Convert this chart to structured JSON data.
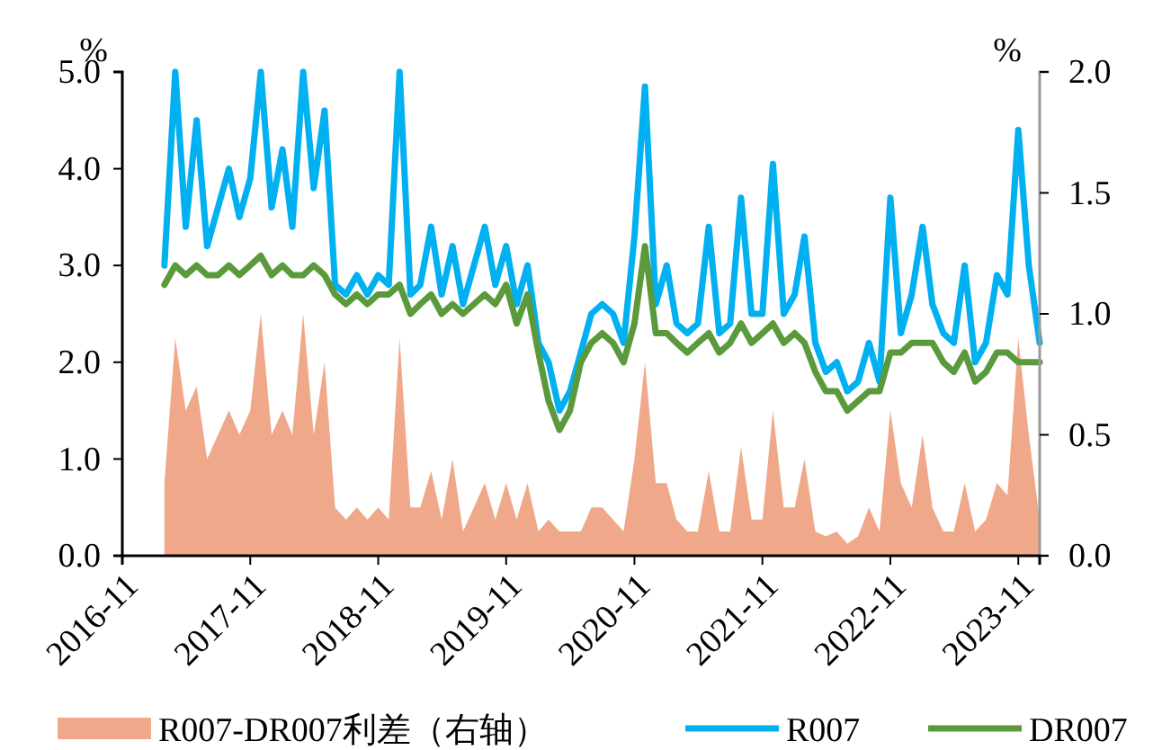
{
  "chart_data": {
    "type": "line",
    "ylabel": "%",
    "y2label": "%",
    "xlim": [
      "2016-11",
      "2024-01"
    ],
    "xticks": [
      {
        "value": "2016-11",
        "label": "2016-11"
      },
      {
        "value": "2017-11",
        "label": "2017-11"
      },
      {
        "value": "2018-11",
        "label": "2018-11"
      },
      {
        "value": "2019-11",
        "label": "2019-11"
      },
      {
        "value": "2020-11",
        "label": "2020-11"
      },
      {
        "value": "2021-11",
        "label": "2021-11"
      },
      {
        "value": "2022-11",
        "label": "2022-11"
      },
      {
        "value": "2023-11",
        "label": "2023-11"
      }
    ],
    "ylim": [
      0,
      5
    ],
    "yticks": [
      {
        "value": 0,
        "label": "0.0"
      },
      {
        "value": 1,
        "label": "1.0"
      },
      {
        "value": 2,
        "label": "2.0"
      },
      {
        "value": 3,
        "label": "3.0"
      },
      {
        "value": 4,
        "label": "4.0"
      },
      {
        "value": 5,
        "label": "5.0"
      }
    ],
    "y2lim": [
      0,
      2
    ],
    "y2ticks": [
      {
        "value": 0,
        "label": "0.0"
      },
      {
        "value": 0.5,
        "label": "0.5"
      },
      {
        "value": 1,
        "label": "1.0"
      },
      {
        "value": 1.5,
        "label": "1.5"
      },
      {
        "value": 2,
        "label": "2.0"
      }
    ],
    "x": [
      "2017-03",
      "2017-04",
      "2017-05",
      "2017-06",
      "2017-07",
      "2017-08",
      "2017-09",
      "2017-10",
      "2017-11",
      "2017-12",
      "2018-01",
      "2018-02",
      "2018-03",
      "2018-04",
      "2018-05",
      "2018-06",
      "2018-07",
      "2018-08",
      "2018-09",
      "2018-10",
      "2018-11",
      "2018-12",
      "2019-01",
      "2019-02",
      "2019-03",
      "2019-04",
      "2019-05",
      "2019-06",
      "2019-07",
      "2019-08",
      "2019-09",
      "2019-10",
      "2019-11",
      "2019-12",
      "2020-01",
      "2020-02",
      "2020-03",
      "2020-04",
      "2020-05",
      "2020-06",
      "2020-07",
      "2020-08",
      "2020-09",
      "2020-10",
      "2020-11",
      "2020-12",
      "2021-01",
      "2021-02",
      "2021-03",
      "2021-04",
      "2021-05",
      "2021-06",
      "2021-07",
      "2021-08",
      "2021-09",
      "2021-10",
      "2021-11",
      "2021-12",
      "2022-01",
      "2022-02",
      "2022-03",
      "2022-04",
      "2022-05",
      "2022-06",
      "2022-07",
      "2022-08",
      "2022-09",
      "2022-10",
      "2022-11",
      "2022-12",
      "2023-01",
      "2023-02",
      "2023-03",
      "2023-04",
      "2023-05",
      "2023-06",
      "2023-07",
      "2023-08",
      "2023-09",
      "2023-10",
      "2023-11",
      "2023-12",
      "2024-01"
    ],
    "legend": "bottom",
    "series": [
      {
        "name": "R007-DR007利差（右轴）",
        "type": "area",
        "axis": "y2",
        "color": "#f0a88a",
        "values": [
          0.3,
          0.9,
          0.6,
          0.7,
          0.4,
          0.5,
          0.6,
          0.5,
          0.6,
          1.0,
          0.5,
          0.6,
          0.5,
          1.0,
          0.5,
          0.8,
          0.2,
          0.15,
          0.2,
          0.15,
          0.2,
          0.15,
          0.9,
          0.2,
          0.2,
          0.35,
          0.15,
          0.4,
          0.1,
          0.2,
          0.3,
          0.15,
          0.3,
          0.15,
          0.3,
          0.1,
          0.15,
          0.1,
          0.1,
          0.1,
          0.2,
          0.2,
          0.15,
          0.1,
          0.4,
          0.8,
          0.3,
          0.3,
          0.15,
          0.1,
          0.1,
          0.35,
          0.1,
          0.1,
          0.45,
          0.15,
          0.15,
          0.6,
          0.2,
          0.2,
          0.4,
          0.1,
          0.08,
          0.1,
          0.05,
          0.08,
          0.2,
          0.1,
          0.6,
          0.3,
          0.2,
          0.5,
          0.2,
          0.1,
          0.1,
          0.3,
          0.1,
          0.15,
          0.3,
          0.25,
          0.9,
          0.5,
          0.15
        ]
      },
      {
        "name": "R007",
        "color": "#00b0f0",
        "values": [
          3.0,
          5.0,
          3.4,
          4.5,
          3.2,
          3.6,
          4.0,
          3.5,
          3.9,
          5.0,
          3.6,
          4.2,
          3.4,
          5.0,
          3.8,
          4.6,
          2.8,
          2.7,
          2.9,
          2.7,
          2.9,
          2.8,
          5.0,
          2.7,
          2.8,
          3.4,
          2.7,
          3.2,
          2.6,
          3.0,
          3.4,
          2.8,
          3.2,
          2.6,
          3.0,
          2.2,
          2.0,
          1.5,
          1.7,
          2.1,
          2.5,
          2.6,
          2.5,
          2.2,
          3.3,
          4.85,
          2.6,
          3.0,
          2.4,
          2.3,
          2.4,
          3.4,
          2.3,
          2.4,
          3.7,
          2.5,
          2.5,
          4.05,
          2.5,
          2.7,
          3.3,
          2.2,
          1.9,
          2.0,
          1.7,
          1.8,
          2.2,
          1.8,
          3.7,
          2.3,
          2.7,
          3.4,
          2.6,
          2.3,
          2.2,
          3.0,
          2.0,
          2.2,
          2.9,
          2.7,
          4.4,
          3.0,
          2.2
        ]
      },
      {
        "name": "DR007",
        "color": "#5b9a3c",
        "values": [
          2.8,
          3.0,
          2.9,
          3.0,
          2.9,
          2.9,
          3.0,
          2.9,
          3.0,
          3.1,
          2.9,
          3.0,
          2.9,
          2.9,
          3.0,
          2.9,
          2.7,
          2.6,
          2.7,
          2.6,
          2.7,
          2.7,
          2.8,
          2.5,
          2.6,
          2.7,
          2.5,
          2.6,
          2.5,
          2.6,
          2.7,
          2.6,
          2.8,
          2.4,
          2.7,
          2.1,
          1.6,
          1.3,
          1.5,
          2.0,
          2.2,
          2.3,
          2.2,
          2.0,
          2.4,
          3.2,
          2.3,
          2.3,
          2.2,
          2.1,
          2.2,
          2.3,
          2.1,
          2.2,
          2.4,
          2.2,
          2.3,
          2.4,
          2.2,
          2.3,
          2.2,
          1.9,
          1.7,
          1.7,
          1.5,
          1.6,
          1.7,
          1.7,
          2.1,
          2.1,
          2.2,
          2.2,
          2.2,
          2.0,
          1.9,
          2.1,
          1.8,
          1.9,
          2.1,
          2.1,
          2.0,
          2.0,
          2.0
        ]
      }
    ]
  }
}
